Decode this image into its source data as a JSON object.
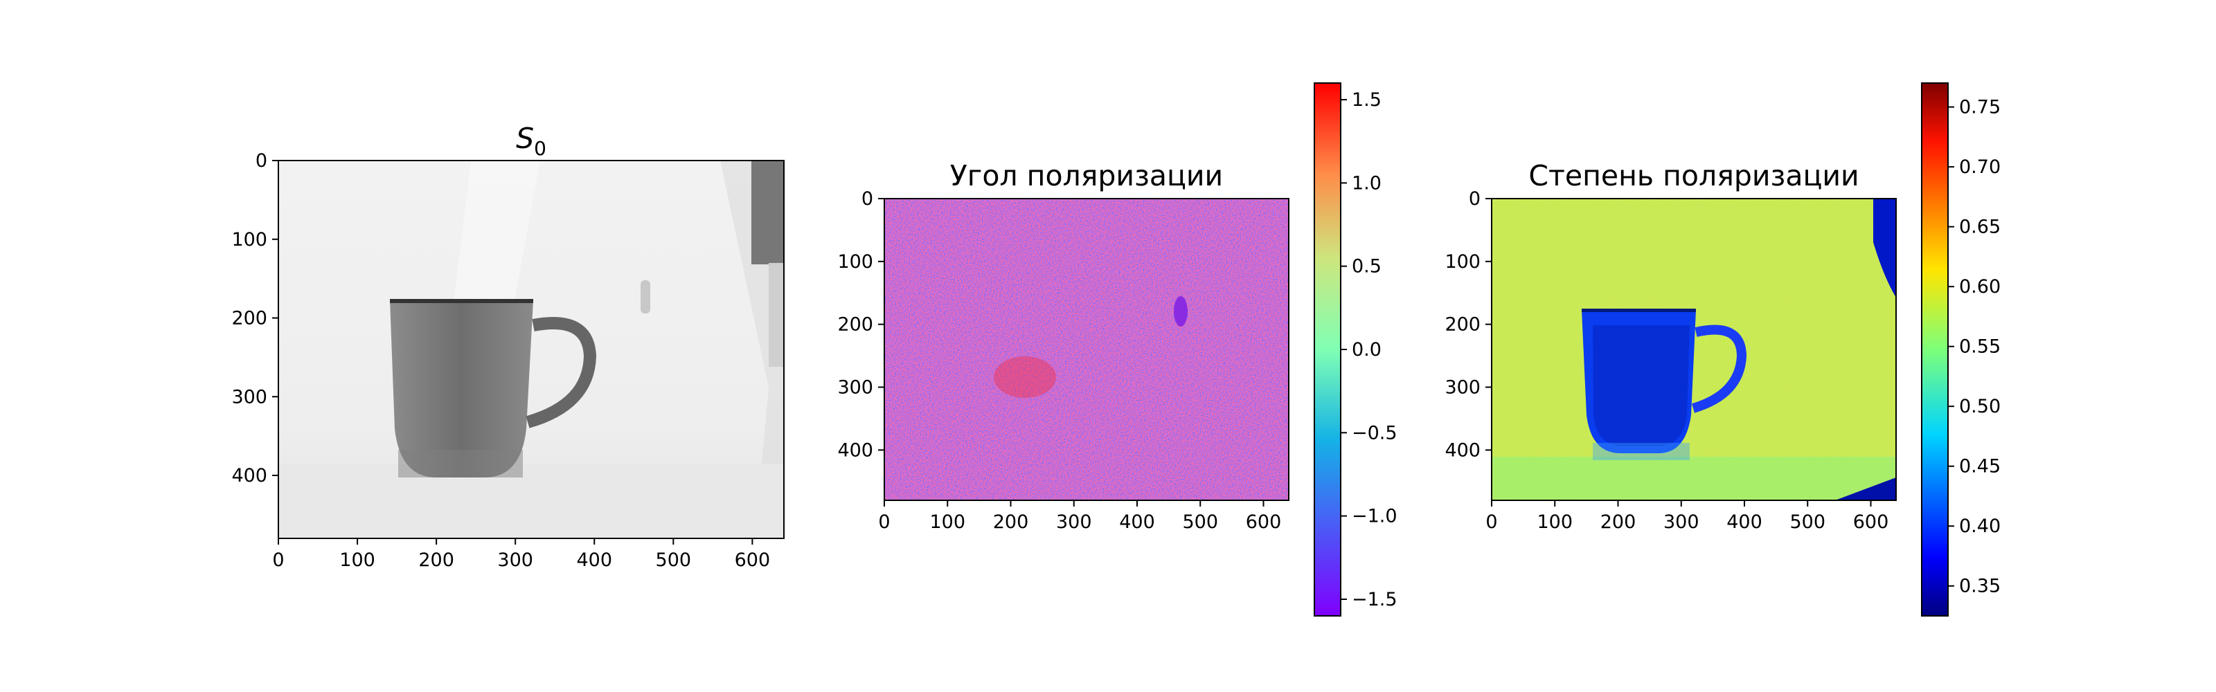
{
  "figure": {
    "background": "#ffffff"
  },
  "chart_data": [
    {
      "type": "heatmap",
      "title": "S",
      "title_subscript": "0",
      "title_italic": true,
      "image_description": "grayscale intensity image of a mug",
      "colormap": "gray",
      "xticks": [
        0,
        100,
        200,
        300,
        400,
        500,
        600
      ],
      "yticks": [
        0,
        100,
        200,
        300,
        400
      ],
      "xlim": [
        0,
        640
      ],
      "ylim": [
        480,
        0
      ],
      "colorbar": false
    },
    {
      "type": "heatmap",
      "title": "Угол поляризации",
      "colormap": "rainbow",
      "xticks": [
        0,
        100,
        200,
        300,
        400,
        500,
        600
      ],
      "yticks": [
        0,
        100,
        200,
        300,
        400
      ],
      "xlim": [
        0,
        640
      ],
      "ylim": [
        480,
        0
      ],
      "colorbar": true,
      "colorbar_range": [
        -1.6,
        1.6
      ],
      "colorbar_ticks": [
        1.5,
        1.0,
        0.5,
        0.0,
        -0.5,
        -1.0,
        -1.5
      ],
      "colorbar_tick_labels": [
        "1.5",
        "1.0",
        "0.5",
        "0.0",
        "−0.5",
        "−1.0",
        "−1.5"
      ]
    },
    {
      "type": "heatmap",
      "title": "Степень поляризации",
      "colormap": "jet",
      "xticks": [
        0,
        100,
        200,
        300,
        400,
        500,
        600
      ],
      "yticks": [
        0,
        100,
        200,
        300,
        400
      ],
      "xlim": [
        0,
        640
      ],
      "ylim": [
        480,
        0
      ],
      "colorbar": true,
      "colorbar_range": [
        0.325,
        0.77
      ],
      "colorbar_ticks": [
        0.75,
        0.7,
        0.65,
        0.6,
        0.55,
        0.5,
        0.45,
        0.4,
        0.35
      ],
      "colorbar_tick_labels": [
        "0.75",
        "0.70",
        "0.65",
        "0.60",
        "0.55",
        "0.50",
        "0.45",
        "0.40",
        "0.35"
      ]
    }
  ]
}
